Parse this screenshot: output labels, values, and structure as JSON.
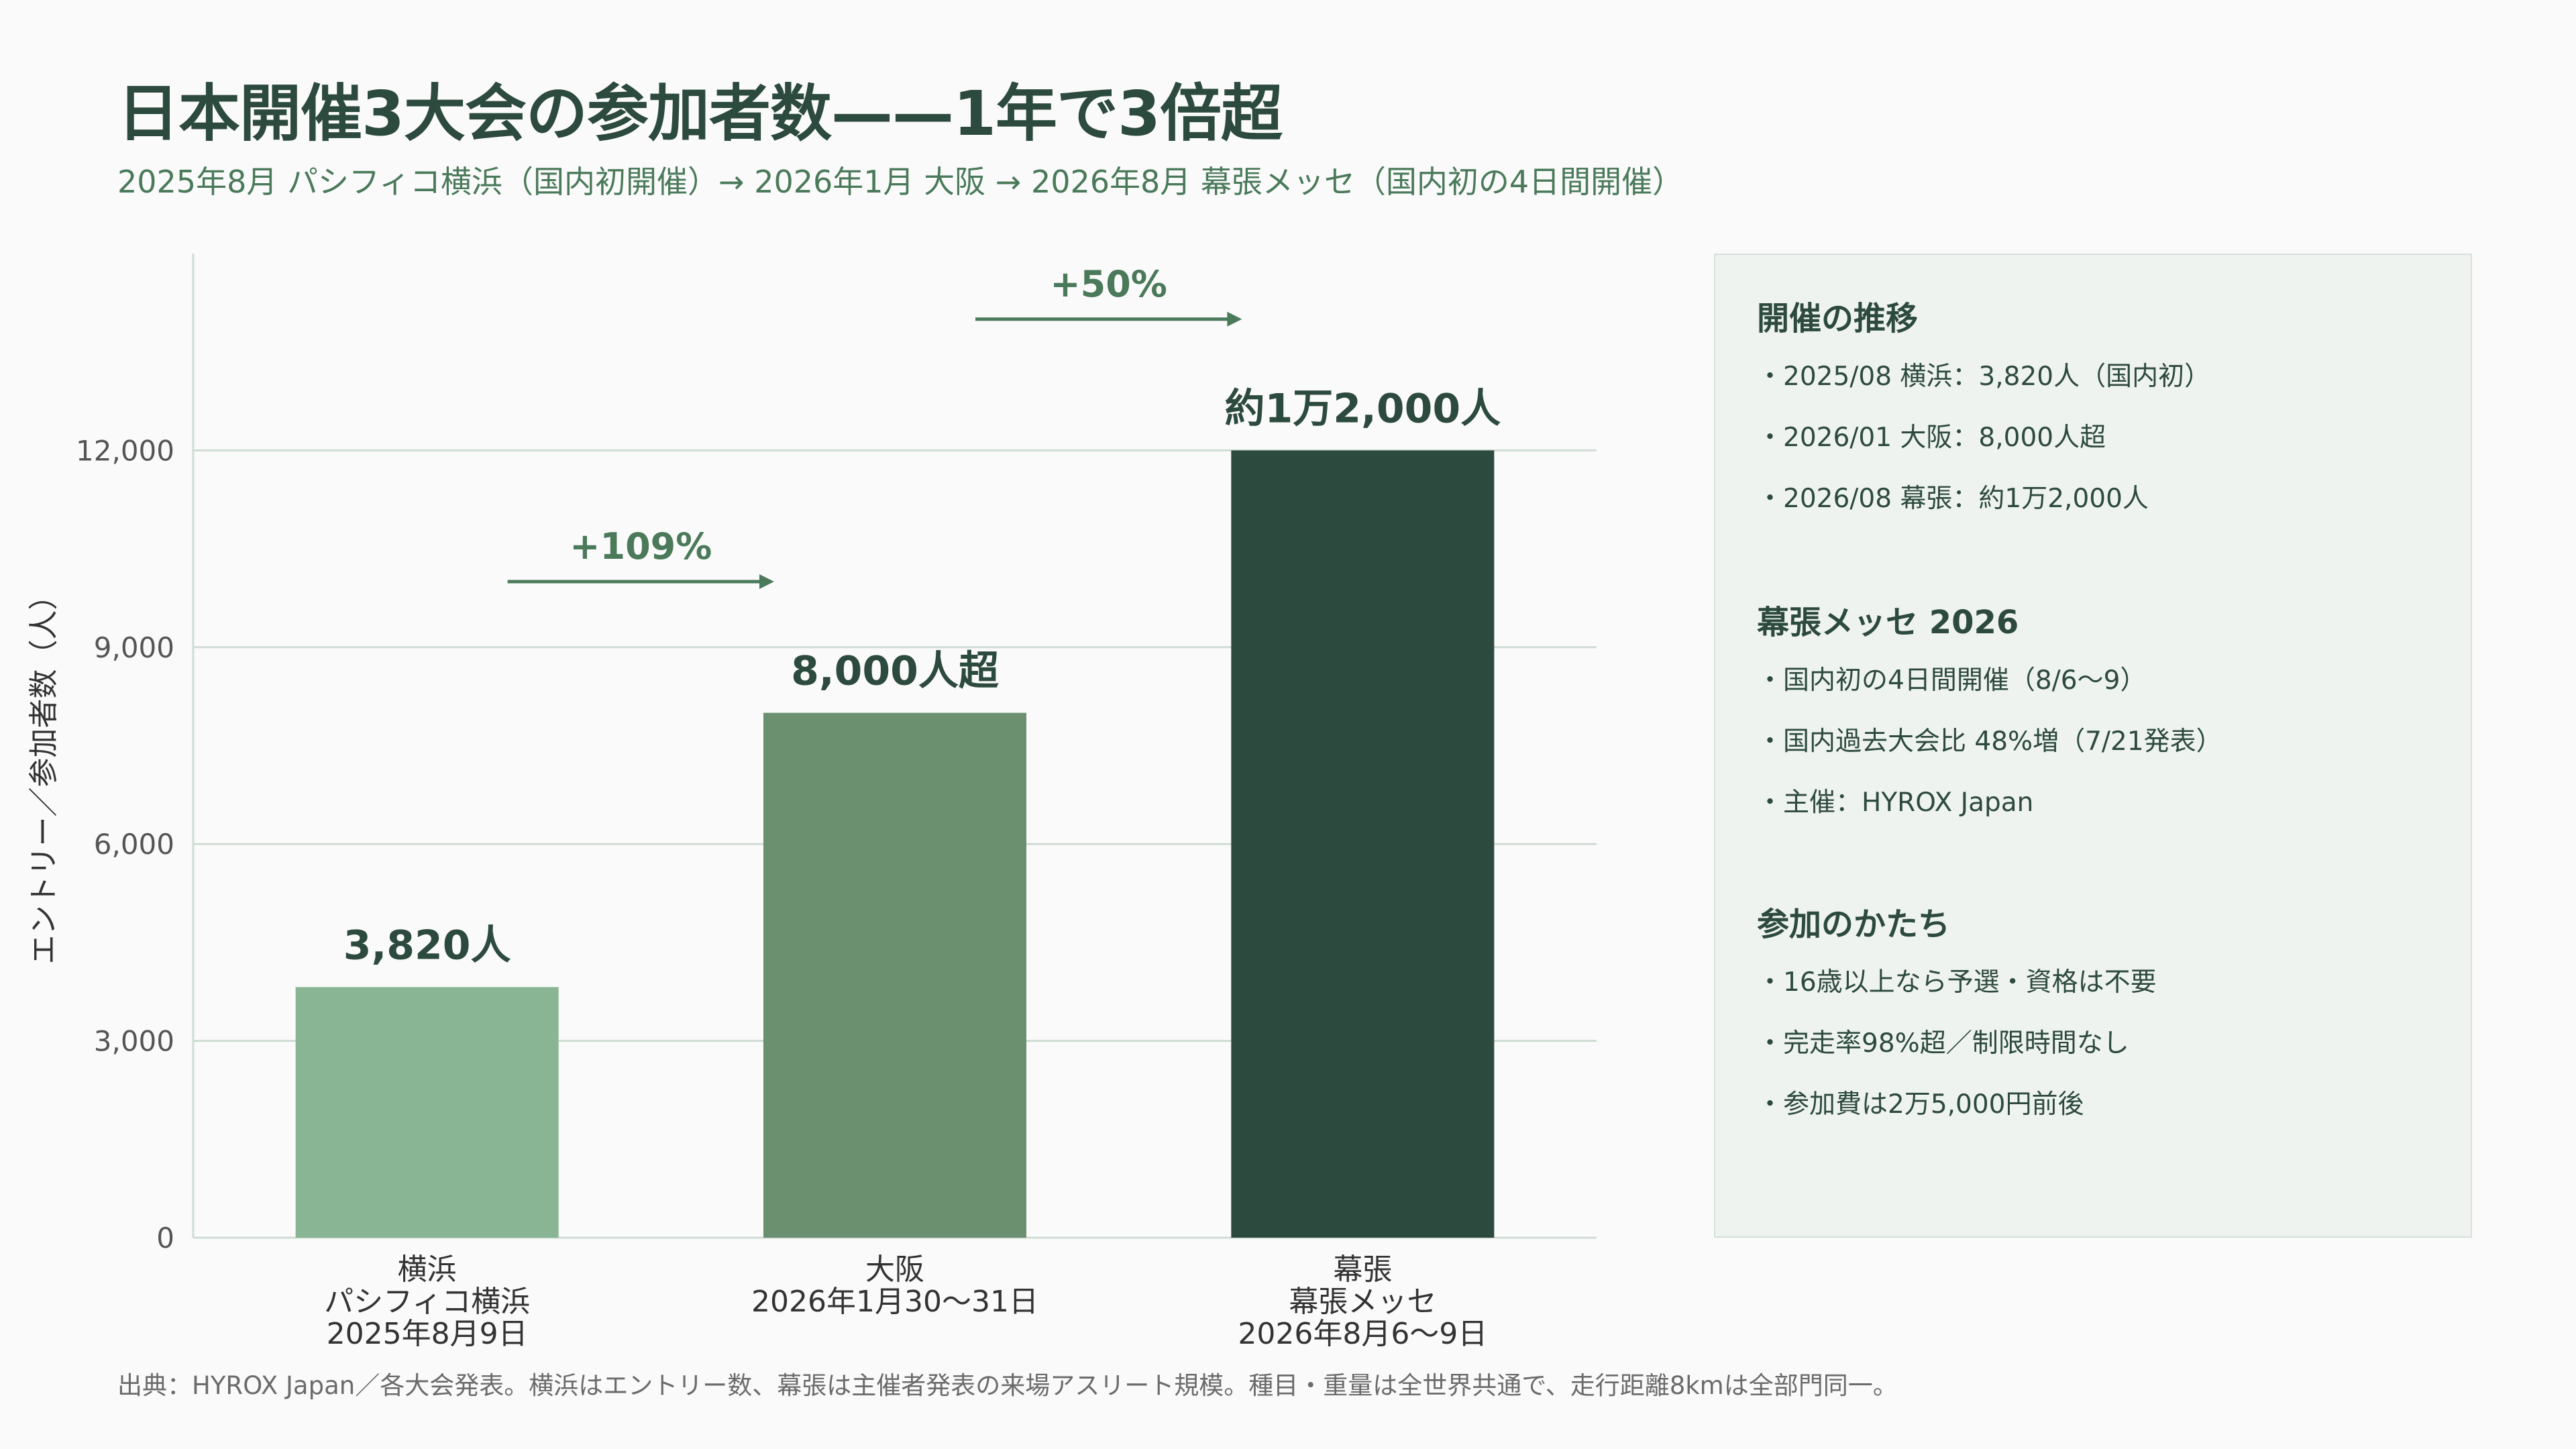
{
  "chart_data": {
    "type": "bar",
    "title": "日本開催3大会の参加者数——1年で3倍超",
    "subtitle": "2025年8月 パシフィコ横浜（国内初開催）→ 2026年1月 大阪 → 2026年8月 幕張メッセ（国内初の4日間開催）",
    "ylabel": "エントリー／参加者数（人）",
    "xlabel": "",
    "ylim": [
      0,
      15000
    ],
    "yticks": [
      0,
      3000,
      6000,
      9000,
      12000
    ],
    "ytick_labels": [
      "0",
      "3,000",
      "6,000",
      "9,000",
      "12,000"
    ],
    "grid": true,
    "categories": [
      [
        "横浜",
        "パシフィコ横浜",
        "2025年8月9日"
      ],
      [
        "大阪",
        "2026年1月30〜31日"
      ],
      [
        "幕張",
        "幕張メッセ",
        "2026年8月6〜9日"
      ]
    ],
    "values": [
      3820,
      8000,
      12000
    ],
    "value_labels": [
      "3,820人",
      "8,000人超",
      "約1万2,000人"
    ],
    "colors": [
      "#8ab594",
      "#6a9070",
      "#2d4a3e"
    ],
    "growth_annotations": [
      {
        "label": "+109%",
        "from": 0,
        "to": 1,
        "y": 10000
      },
      {
        "label": "+50%",
        "from": 1,
        "to": 2,
        "y": 14000
      }
    ],
    "annotation_color": "#4a7a5a"
  },
  "panel": {
    "sections": [
      {
        "heading": "開催の推移",
        "items": [
          "2025/08 横浜：3,820人（国内初）",
          "2026/01 大阪：8,000人超",
          "2026/08 幕張：約1万2,000人"
        ]
      },
      {
        "heading": "幕張メッセ 2026",
        "items": [
          "国内初の4日間開催（8/6〜9）",
          "国内過去大会比 48%増（7/21発表）",
          "主催：HYROX Japan"
        ]
      },
      {
        "heading": "参加のかたち",
        "items": [
          "16歳以上なら予選・資格は不要",
          "完走率98%超／制限時間なし",
          "参加費は2万5,000円前後"
        ]
      }
    ]
  },
  "footnote": "出典：HYROX Japan／各大会発表。横浜はエントリー数、幕張は主催者発表の来場アスリート規模。種目・重量は全世界共通で、走行距離8kmは全部門同一。"
}
